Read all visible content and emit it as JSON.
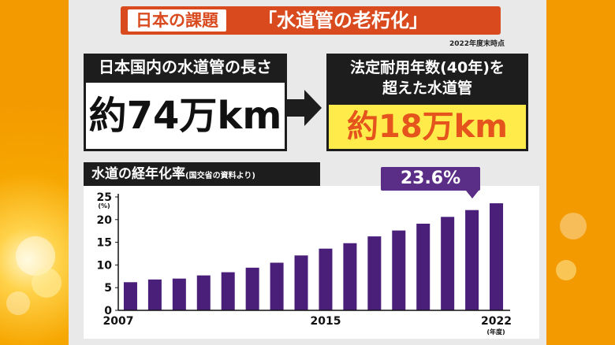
{
  "header": {
    "label": "日本の課題",
    "title": "「水道管の老朽化」",
    "note": "2022年度末時点"
  },
  "left_box": {
    "heading": "日本国内の水道管の長さ",
    "value": "約74万km"
  },
  "right_box": {
    "heading_line1": "法定耐用年数(40年)を",
    "heading_line2": "超えた水道管",
    "value": "約18万km"
  },
  "chart_heading": {
    "title": "水道の経年化率",
    "source": "(国交省の資料より)"
  },
  "callout": "23.6%",
  "colors": {
    "bar": "#4a1f7a",
    "callout": "#5a2d86",
    "accent": "#d94a1e"
  },
  "chart_data": {
    "type": "bar",
    "title": "水道の経年化率",
    "x": [
      2007,
      2008,
      2009,
      2010,
      2011,
      2012,
      2013,
      2014,
      2015,
      2016,
      2017,
      2018,
      2019,
      2020,
      2021,
      2022
    ],
    "values": [
      6.2,
      6.8,
      7.0,
      7.7,
      8.4,
      9.4,
      10.5,
      12.1,
      13.6,
      14.8,
      16.3,
      17.6,
      19.1,
      20.6,
      22.1,
      23.6
    ],
    "x_tick_labels": [
      "2007",
      "2015",
      "2022"
    ],
    "x_unit": "(年度)",
    "y_unit": "(%)",
    "yticks": [
      0,
      5,
      10,
      15,
      20,
      25
    ],
    "ylim": [
      0,
      25
    ],
    "grid": false,
    "data_label": {
      "index": 15,
      "text": "23.6%"
    }
  }
}
